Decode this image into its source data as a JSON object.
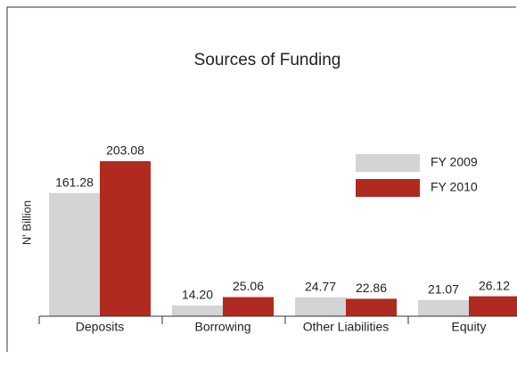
{
  "chart_data": {
    "type": "bar",
    "title": "Sources of Funding",
    "y_label": "N' Billion",
    "categories": [
      "Deposits",
      "Borrowing",
      "Other Liabilities",
      "Equity"
    ],
    "series": [
      {
        "name": "FY 2009",
        "color": "#d3d4d5",
        "values": [
          161.28,
          14.2,
          24.77,
          21.07
        ],
        "value_labels": [
          "161.28",
          "14.20",
          "24.77",
          "21.07"
        ]
      },
      {
        "name": "FY 2010",
        "color": "#b02a1f",
        "values": [
          203.08,
          25.06,
          22.86,
          26.12
        ],
        "value_labels": [
          "203.08",
          "25.06",
          "22.86",
          "26.12"
        ]
      }
    ],
    "ylim": [
      0,
      210
    ],
    "legend": "upper right"
  }
}
